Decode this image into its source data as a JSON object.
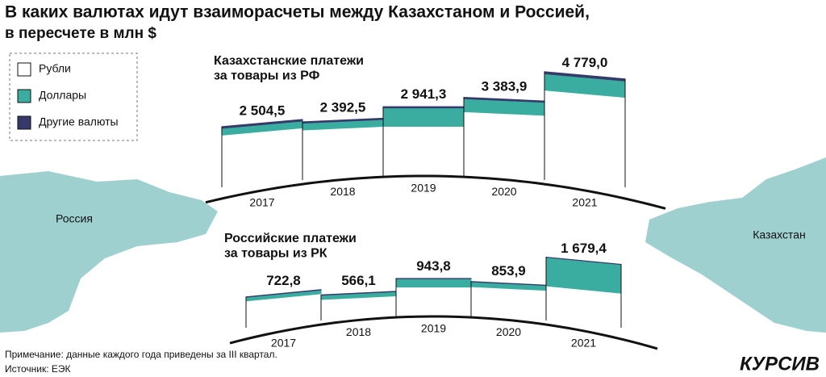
{
  "title": "В каких валютах идут взаиморасчеты между Казахстаном и Россией,",
  "subtitle": "в пересчете в млн $",
  "map_labels": [
    "Россия",
    "Казахстан"
  ],
  "note": "Примечание: данные каждого года приведены за III квартал.",
  "source": "Источник: ЕЭК",
  "logo": "КУРСИВ",
  "chart_data": [
    {
      "type": "stacked-band",
      "title": "Казахстанские платежи\nза товары из РФ",
      "categories": [
        "2017",
        "2018",
        "2019",
        "2020",
        "2021"
      ],
      "series": [
        {
          "name": "Рубли",
          "color": "#ffffff",
          "values": [
            2100,
            2000,
            2000,
            2700,
            3900
          ]
        },
        {
          "name": "Доллары",
          "color": "#3aada0",
          "values": [
            330,
            330,
            880,
            620,
            780
          ]
        },
        {
          "name": "Другие валюты",
          "color": "#353a6b",
          "values": [
            74.5,
            62.5,
            61.3,
            63.9,
            99
          ]
        }
      ],
      "totals": [
        2504.5,
        2392.5,
        2941.3,
        3383.9,
        4779.0
      ],
      "total_labels": [
        "2 504,5",
        "2 392,5",
        "2 941,3",
        "3 383,9",
        "4 779,0"
      ],
      "legend": "top-left"
    },
    {
      "type": "stacked-band",
      "title": "Российские платежи\nза товары из РК",
      "categories": [
        "2017",
        "2018",
        "2019",
        "2020",
        "2021"
      ],
      "series": [
        {
          "name": "Рубли",
          "color": "#ffffff",
          "values": [
            600,
            430,
            690,
            700,
            830
          ]
        },
        {
          "name": "Доллары",
          "color": "#3aada0",
          "values": [
            110,
            125,
            245,
            145,
            845
          ]
        },
        {
          "name": "Другие валюты",
          "color": "#353a6b",
          "values": [
            12.8,
            11.1,
            8.8,
            8.9,
            4.4
          ]
        }
      ],
      "totals": [
        722.8,
        566.1,
        943.8,
        853.9,
        1679.4
      ],
      "total_labels": [
        "722,8",
        "566,1",
        "943,8",
        "853,9",
        "1 679,4"
      ]
    }
  ]
}
